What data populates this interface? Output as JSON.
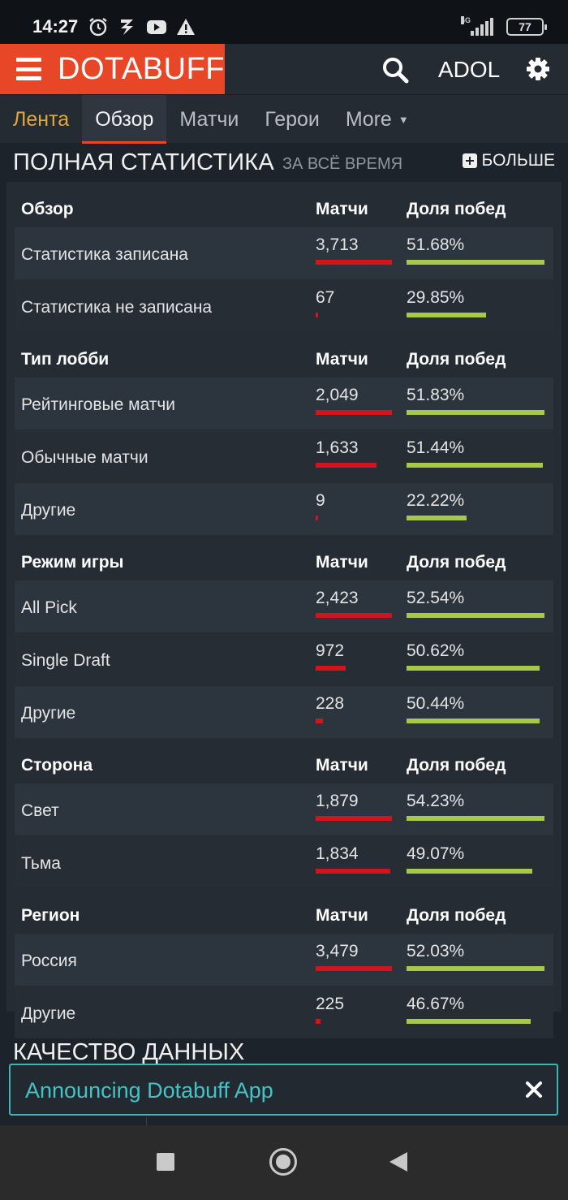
{
  "status_bar": {
    "time": "14:27",
    "network": "4G",
    "battery": "77",
    "icons": [
      "alarm-icon",
      "app-icon",
      "youtube-icon",
      "warning-icon"
    ]
  },
  "header": {
    "brand": "DOTABUFF",
    "user": "ADOL",
    "accent_color": "#e74727"
  },
  "tabs": [
    {
      "label": "Лента"
    },
    {
      "label": "Обзор"
    },
    {
      "label": "Матчи"
    },
    {
      "label": "Герои"
    },
    {
      "label": "More"
    }
  ],
  "section": {
    "title": "ПОЛНАЯ СТАТИСТИКА",
    "subtitle": "ЗА ВСЁ ВРЕМЯ",
    "more_label": "БОЛЬШЕ"
  },
  "groups": [
    {
      "title": "Обзор",
      "col_matches": "Матчи",
      "col_winrate": "Доля побед",
      "rows": [
        {
          "label": "Статистика записана",
          "matches": "3,713",
          "winrate": "51.68%",
          "matches_frac": 0.98,
          "winrate_frac": 0.9
        },
        {
          "label": "Статистика не записана",
          "matches": "67",
          "winrate": "29.85%",
          "matches_frac": 0.02,
          "winrate_frac": 0.52
        }
      ]
    },
    {
      "title": "Тип лобби",
      "col_matches": "Матчи",
      "col_winrate": "Доля побед",
      "rows": [
        {
          "label": "Рейтинговые матчи",
          "matches": "2,049",
          "winrate": "51.83%",
          "matches_frac": 0.98,
          "winrate_frac": 0.9
        },
        {
          "label": "Обычные матчи",
          "matches": "1,633",
          "winrate": "51.44%",
          "matches_frac": 0.78,
          "winrate_frac": 0.89
        },
        {
          "label": "Другие",
          "matches": "9",
          "winrate": "22.22%",
          "matches_frac": 0.01,
          "winrate_frac": 0.39
        }
      ]
    },
    {
      "title": "Режим игры",
      "col_matches": "Матчи",
      "col_winrate": "Доля побед",
      "rows": [
        {
          "label": "All Pick",
          "matches": "2,423",
          "winrate": "52.54%",
          "matches_frac": 0.98,
          "winrate_frac": 0.9
        },
        {
          "label": "Single Draft",
          "matches": "972",
          "winrate": "50.62%",
          "matches_frac": 0.39,
          "winrate_frac": 0.87
        },
        {
          "label": "Другие",
          "matches": "228",
          "winrate": "50.44%",
          "matches_frac": 0.09,
          "winrate_frac": 0.87
        }
      ]
    },
    {
      "title": "Сторона",
      "col_matches": "Матчи",
      "col_winrate": "Доля побед",
      "rows": [
        {
          "label": "Свет",
          "matches": "1,879",
          "winrate": "54.23%",
          "matches_frac": 0.98,
          "winrate_frac": 0.9
        },
        {
          "label": "Тьма",
          "matches": "1,834",
          "winrate": "49.07%",
          "matches_frac": 0.96,
          "winrate_frac": 0.82
        }
      ]
    },
    {
      "title": "Регион",
      "col_matches": "Матчи",
      "col_winrate": "Доля побед",
      "rows": [
        {
          "label": "Россия",
          "matches": "3,479",
          "winrate": "52.03%",
          "matches_frac": 0.98,
          "winrate_frac": 0.9
        },
        {
          "label": "Другие",
          "matches": "225",
          "winrate": "46.67%",
          "matches_frac": 0.06,
          "winrate_frac": 0.81
        }
      ]
    }
  ],
  "data_quality": {
    "title": "КАЧЕСТВО ДАННЫХ"
  },
  "banner": {
    "text": "Announcing Dotabuff App",
    "border_color": "#3eb3b8"
  },
  "colors": {
    "matches_bar": "#d4141b",
    "winrate_bar": "#a7c94a"
  }
}
